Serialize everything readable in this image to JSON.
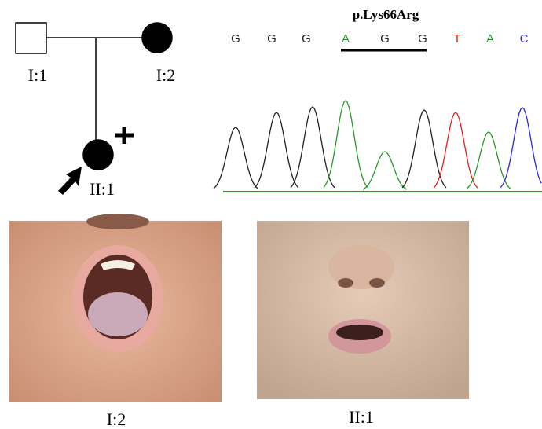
{
  "pedigree": {
    "individuals": [
      {
        "label": "I:1"
      },
      {
        "label": "I:2"
      },
      {
        "label": "II:1"
      }
    ]
  },
  "sequence": {
    "variant": "p.Lys66Arg",
    "bases": [
      "G",
      "G",
      "G",
      "A",
      "G",
      "G",
      "T",
      "A",
      "C"
    ]
  },
  "photos": [
    {
      "caption": "I:2"
    },
    {
      "caption": "II:1"
    }
  ]
}
